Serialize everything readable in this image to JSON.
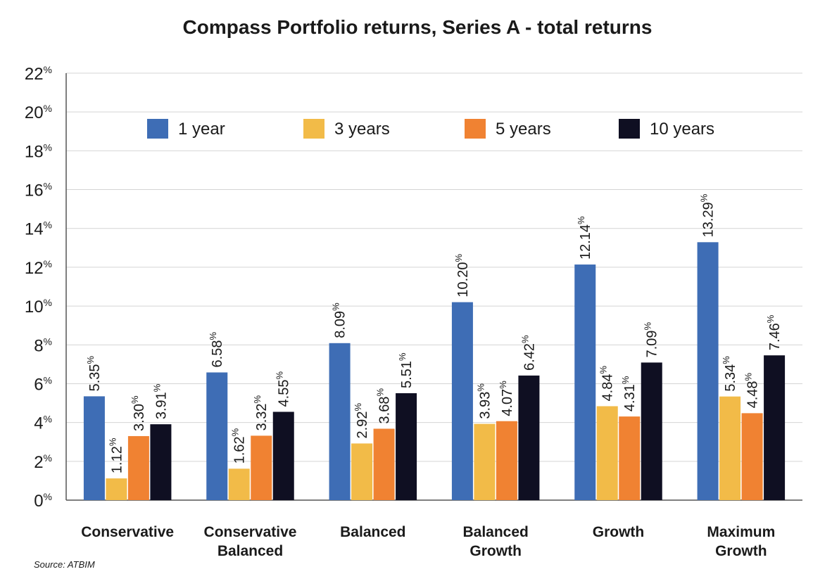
{
  "chart_data": {
    "type": "bar",
    "title": "Compass Portfolio returns, Series A - total returns",
    "categories": [
      [
        "Conservative"
      ],
      [
        "Conservative",
        "Balanced"
      ],
      [
        "Balanced"
      ],
      [
        "Balanced",
        "Growth"
      ],
      [
        "Growth"
      ],
      [
        "Maximum",
        "Growth"
      ]
    ],
    "series": [
      {
        "name": "1 year",
        "color": "#3e6db5",
        "values": [
          5.35,
          6.58,
          8.09,
          10.2,
          12.14,
          13.29
        ],
        "labels": [
          "5.35",
          "6.58",
          "8.09",
          "10.20",
          "12.14",
          "13.29"
        ]
      },
      {
        "name": "3 years",
        "color": "#f2bb48",
        "values": [
          1.12,
          1.62,
          2.92,
          3.93,
          4.84,
          5.34
        ],
        "labels": [
          "1.12",
          "1.62",
          "2.92",
          "3.93",
          "4.84",
          "5.34"
        ]
      },
      {
        "name": "5 years",
        "color": "#f08232",
        "values": [
          3.3,
          3.32,
          3.68,
          4.07,
          4.31,
          4.48
        ],
        "labels": [
          "3.30",
          "3.32",
          "3.68",
          "4.07",
          "4.31",
          "4.48"
        ]
      },
      {
        "name": "10 years",
        "color": "#0f0f22",
        "values": [
          3.91,
          4.55,
          5.51,
          6.42,
          7.09,
          7.46
        ],
        "labels": [
          "3.91",
          "4.55",
          "5.51",
          "6.42",
          "7.09",
          "7.46"
        ]
      }
    ],
    "ylim": [
      0,
      22
    ],
    "yticks": [
      "0",
      "2",
      "4",
      "6",
      "8",
      "10",
      "12",
      "14",
      "16",
      "18",
      "20",
      "22"
    ],
    "unit": "%",
    "grid": true,
    "legend_position": "top"
  },
  "source": "Source: ATBIM"
}
